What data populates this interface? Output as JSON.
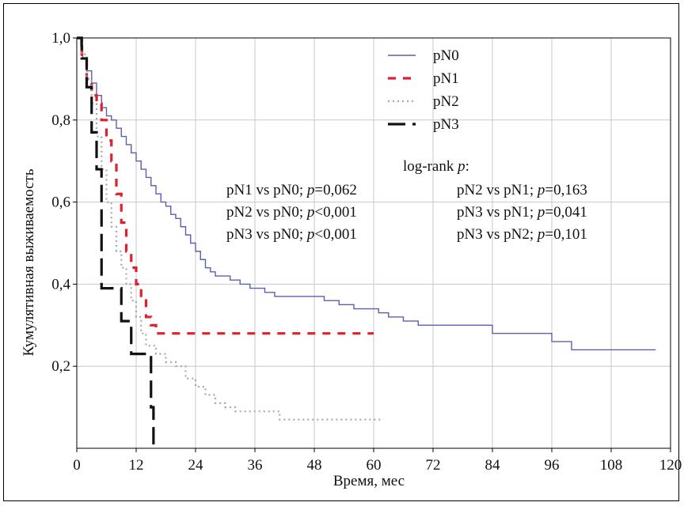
{
  "chart_data": {
    "type": "line",
    "xlabel": "Время, мес",
    "ylabel": "Кумулятивная выживаемость",
    "xlim": [
      0,
      120
    ],
    "ylim": [
      0.0,
      1.0
    ],
    "x_ticks": [
      0,
      12,
      24,
      36,
      48,
      60,
      72,
      84,
      96,
      108,
      120
    ],
    "x_tick_labels": [
      "0",
      "12",
      "24",
      "36",
      "48",
      "60",
      "72",
      "84",
      "96",
      "108",
      "120"
    ],
    "y_ticks": [
      0.2,
      0.4,
      0.6,
      0.8,
      1.0
    ],
    "y_tick_labels": [
      "0,2",
      "0,4",
      "0,6",
      "0,8",
      "1,0"
    ],
    "grid": true,
    "legend_position": "top-center",
    "series": [
      {
        "name": "pN0",
        "color": "#5a5fb0",
        "style": "solid",
        "points": [
          [
            0,
            1.0
          ],
          [
            0.8,
            0.98
          ],
          [
            1.2,
            0.95
          ],
          [
            2,
            0.92
          ],
          [
            3,
            0.89
          ],
          [
            4,
            0.86
          ],
          [
            5,
            0.83
          ],
          [
            6,
            0.81
          ],
          [
            7,
            0.8
          ],
          [
            8,
            0.78
          ],
          [
            9,
            0.76
          ],
          [
            10,
            0.74
          ],
          [
            11,
            0.72
          ],
          [
            12,
            0.7
          ],
          [
            13,
            0.68
          ],
          [
            14,
            0.66
          ],
          [
            15,
            0.64
          ],
          [
            16,
            0.62
          ],
          [
            17,
            0.6
          ],
          [
            18,
            0.59
          ],
          [
            19,
            0.57
          ],
          [
            20,
            0.56
          ],
          [
            21,
            0.54
          ],
          [
            22,
            0.52
          ],
          [
            23,
            0.5
          ],
          [
            24,
            0.48
          ],
          [
            25,
            0.46
          ],
          [
            26,
            0.44
          ],
          [
            27,
            0.43
          ],
          [
            28,
            0.42
          ],
          [
            30,
            0.42
          ],
          [
            31,
            0.41
          ],
          [
            33,
            0.4
          ],
          [
            35,
            0.39
          ],
          [
            38,
            0.38
          ],
          [
            40,
            0.37
          ],
          [
            48,
            0.37
          ],
          [
            50,
            0.36
          ],
          [
            53,
            0.35
          ],
          [
            56,
            0.34
          ],
          [
            60,
            0.34
          ],
          [
            61,
            0.33
          ],
          [
            63,
            0.32
          ],
          [
            66,
            0.31
          ],
          [
            69,
            0.3
          ],
          [
            72,
            0.3
          ],
          [
            75,
            0.3
          ],
          [
            84,
            0.28
          ],
          [
            95,
            0.28
          ],
          [
            96,
            0.26
          ],
          [
            98,
            0.26
          ],
          [
            100,
            0.24
          ],
          [
            117,
            0.24
          ]
        ]
      },
      {
        "name": "pN1",
        "color": "#e0202a",
        "style": "dashed",
        "points": [
          [
            0,
            1.0
          ],
          [
            1,
            0.95
          ],
          [
            2,
            0.9
          ],
          [
            3,
            0.86
          ],
          [
            4,
            0.84
          ],
          [
            5,
            0.8
          ],
          [
            6,
            0.75
          ],
          [
            7,
            0.7
          ],
          [
            8,
            0.62
          ],
          [
            9,
            0.55
          ],
          [
            10,
            0.48
          ],
          [
            11,
            0.44
          ],
          [
            12,
            0.4
          ],
          [
            13,
            0.36
          ],
          [
            14,
            0.32
          ],
          [
            15,
            0.3
          ],
          [
            16,
            0.28
          ],
          [
            60,
            0.28
          ]
        ]
      },
      {
        "name": "pN2",
        "color": "#a8a8a8",
        "style": "dotted",
        "points": [
          [
            0,
            1.0
          ],
          [
            1,
            0.96
          ],
          [
            2,
            0.9
          ],
          [
            3,
            0.84
          ],
          [
            4,
            0.76
          ],
          [
            5,
            0.68
          ],
          [
            6,
            0.6
          ],
          [
            7,
            0.54
          ],
          [
            8,
            0.48
          ],
          [
            9,
            0.44
          ],
          [
            10,
            0.4
          ],
          [
            11,
            0.36
          ],
          [
            12,
            0.32
          ],
          [
            13,
            0.28
          ],
          [
            14,
            0.25
          ],
          [
            16,
            0.23
          ],
          [
            18,
            0.21
          ],
          [
            20,
            0.2
          ],
          [
            22,
            0.17
          ],
          [
            24,
            0.15
          ],
          [
            26,
            0.13
          ],
          [
            28,
            0.11
          ],
          [
            30,
            0.1
          ],
          [
            32,
            0.09
          ],
          [
            40,
            0.09
          ],
          [
            41,
            0.07
          ],
          [
            62,
            0.07
          ]
        ]
      },
      {
        "name": "pN3",
        "color": "#111111",
        "style": "longdash",
        "points": [
          [
            0,
            1.0
          ],
          [
            1,
            0.95
          ],
          [
            2,
            0.88
          ],
          [
            3,
            0.77
          ],
          [
            4,
            0.68
          ],
          [
            5,
            0.39
          ],
          [
            8,
            0.39
          ],
          [
            9,
            0.31
          ],
          [
            10,
            0.31
          ],
          [
            11,
            0.23
          ],
          [
            14,
            0.23
          ],
          [
            15,
            0.1
          ],
          [
            15.5,
            0.0
          ]
        ]
      }
    ],
    "annotations": {
      "header_prefix": "log-rank ",
      "header_p": "p",
      "header_suffix": ":",
      "rows": [
        {
          "left": {
            "pre": "pN1 vs pN0; ",
            "p": "p",
            "post": "=0,062"
          },
          "right": {
            "pre": "pN2 vs pN1; ",
            "p": "p",
            "post": "=0,163"
          }
        },
        {
          "left": {
            "pre": "pN2 vs pN0; ",
            "p": "p",
            "post": "<0,001"
          },
          "right": {
            "pre": "pN3 vs pN1; ",
            "p": "p",
            "post": "=0,041"
          }
        },
        {
          "left": {
            "pre": "pN3 vs pN0; ",
            "p": "p",
            "post": "<0,001"
          },
          "right": {
            "pre": "pN3 vs pN2; ",
            "p": "p",
            "post": "=0,101"
          }
        }
      ]
    }
  }
}
